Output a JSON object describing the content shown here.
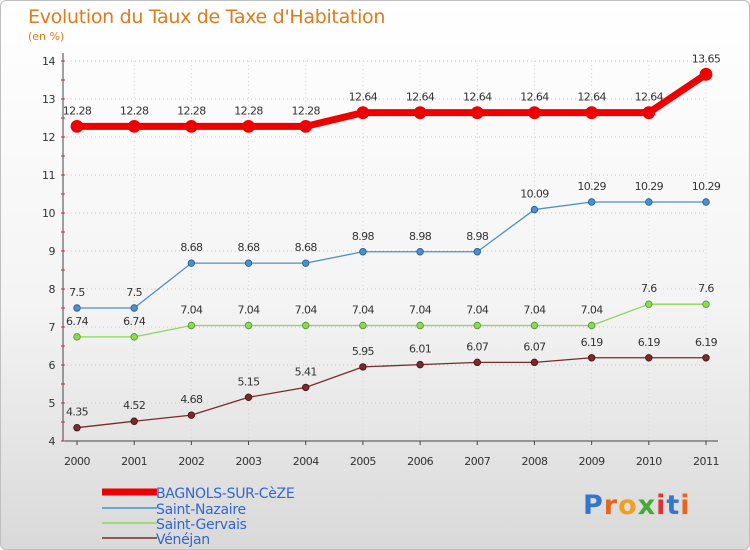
{
  "title": "Evolution du Taux de Taxe d'Habitation",
  "subtitle": "(en %)",
  "logo": "Proxiti",
  "chart_data": {
    "type": "line",
    "title": "Evolution du Taux de Taxe d'Habitation",
    "ylabel": "(en %)",
    "xlabel": "",
    "x": [
      "2000",
      "2001",
      "2002",
      "2003",
      "2004",
      "2005",
      "2006",
      "2007",
      "2008",
      "2009",
      "2010",
      "2011"
    ],
    "ylim": [
      4,
      14
    ],
    "yticks": [
      4,
      5,
      6,
      7,
      8,
      9,
      10,
      11,
      12,
      13,
      14
    ],
    "legend_position": "bottom-left",
    "series": [
      {
        "name": "BAGNOLS-SUR-CèZE",
        "color": "#ee0000",
        "values": [
          12.28,
          12.28,
          12.28,
          12.28,
          12.28,
          12.64,
          12.64,
          12.64,
          12.64,
          12.64,
          12.64,
          13.65
        ],
        "labels": [
          "12.28",
          "12.28",
          "12.28",
          "12.28",
          "12.28",
          "12.64",
          "12.64",
          "12.64",
          "12.64",
          "12.64",
          "12.64",
          "13.65"
        ]
      },
      {
        "name": "Saint-Nazaire",
        "color": "#4d8fcc",
        "values": [
          7.5,
          7.5,
          8.68,
          8.68,
          8.68,
          8.98,
          8.98,
          8.98,
          10.09,
          10.29,
          10.29,
          10.29
        ],
        "labels": [
          "7.5",
          "7.5",
          "8.68",
          "8.68",
          "8.68",
          "8.98",
          "8.98",
          "8.98",
          "10.09",
          "10.29",
          "10.29",
          "10.29"
        ]
      },
      {
        "name": "Saint-Gervais",
        "color": "#8fd65a",
        "values": [
          6.74,
          6.74,
          7.04,
          7.04,
          7.04,
          7.04,
          7.04,
          7.04,
          7.04,
          7.04,
          7.6,
          7.6
        ],
        "labels": [
          "6.74",
          "6.74",
          "7.04",
          "7.04",
          "7.04",
          "7.04",
          "7.04",
          "7.04",
          "7.04",
          "7.04",
          "7.6",
          "7.6"
        ]
      },
      {
        "name": "Vénéjan",
        "color": "#7a2a2a",
        "values": [
          4.35,
          4.52,
          4.68,
          5.15,
          5.41,
          5.95,
          6.01,
          6.07,
          6.07,
          6.19,
          6.19,
          6.19
        ],
        "labels": [
          "4.35",
          "4.52",
          "4.68",
          "5.15",
          "5.41",
          "5.95",
          "6.01",
          "6.07",
          "6.07",
          "6.19",
          "6.19",
          "6.19"
        ]
      }
    ]
  }
}
